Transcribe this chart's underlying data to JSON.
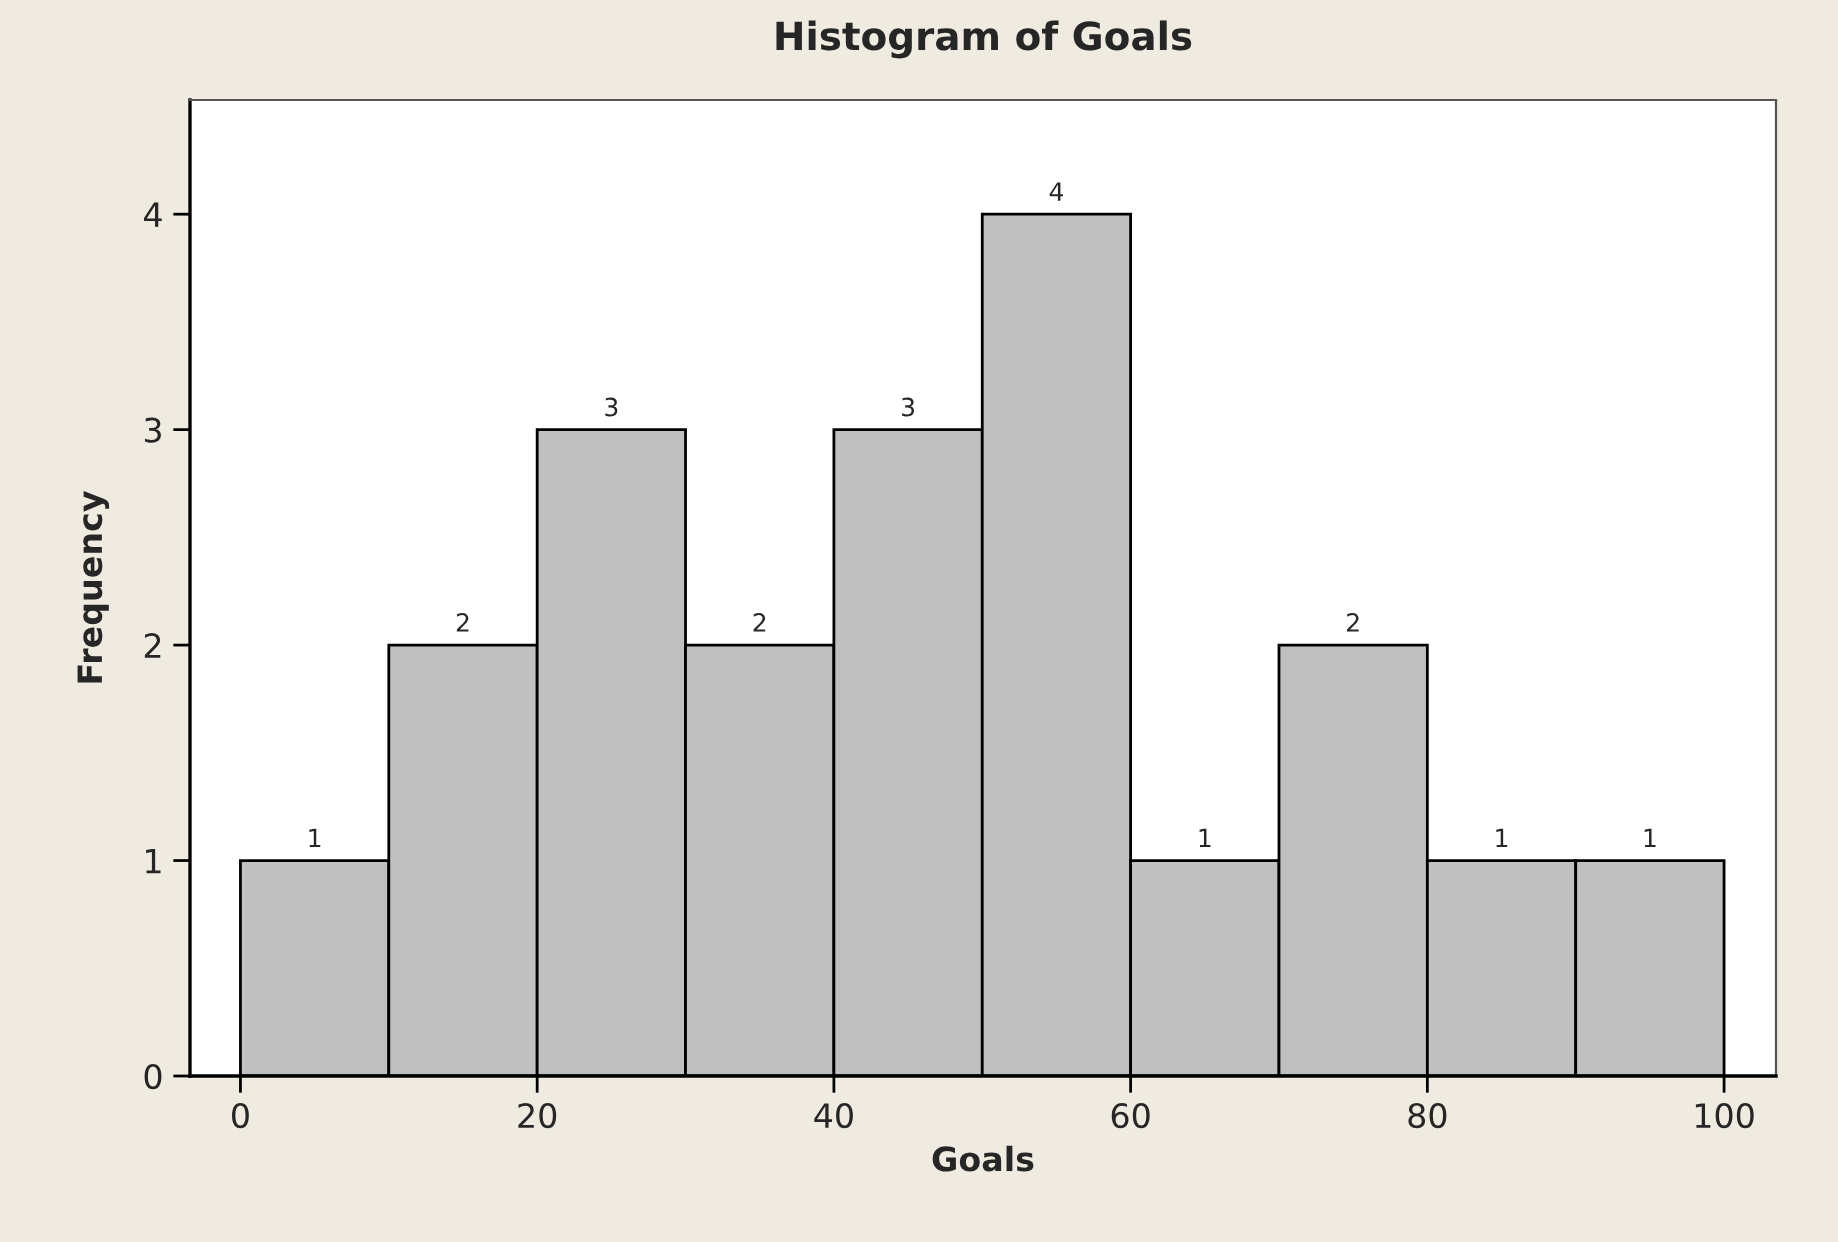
{
  "chart_data": {
    "type": "histogram",
    "title": "Histogram of Goals",
    "xlabel": "Goals",
    "ylabel": "Frequency",
    "bins": [
      0,
      10,
      20,
      30,
      40,
      50,
      60,
      70,
      80,
      90,
      100
    ],
    "values": [
      1,
      2,
      3,
      2,
      3,
      4,
      1,
      2,
      1,
      1
    ],
    "color": "#c0c0c0",
    "data_labels": true,
    "grid": false,
    "xlim": [
      -3.4,
      103.5
    ],
    "xticks": [
      0,
      20,
      40,
      60,
      80,
      100
    ],
    "ylim": [
      0,
      4.53
    ],
    "yticks": [
      0,
      1,
      2,
      3,
      4
    ]
  }
}
